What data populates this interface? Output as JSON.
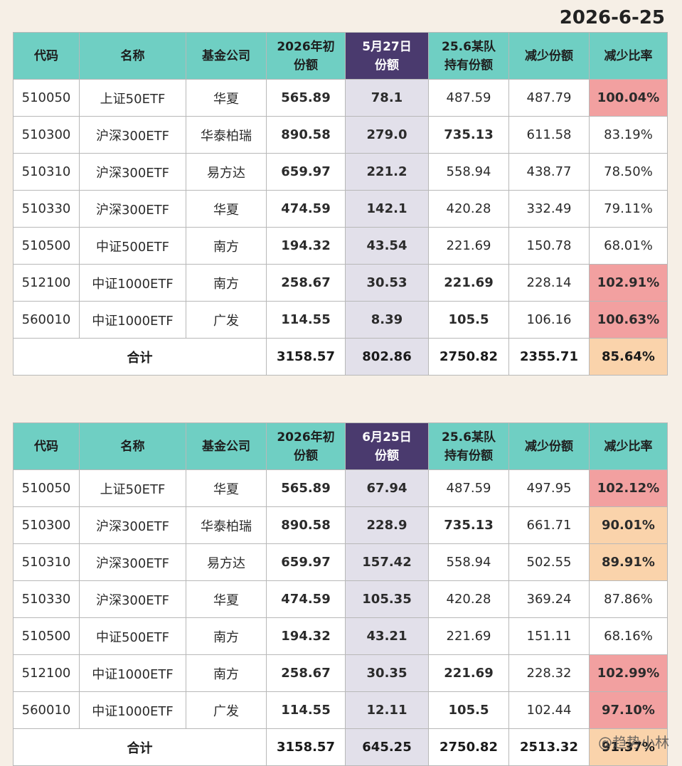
{
  "date": "2026-6-25",
  "watermark": "@趋势小林",
  "tables": [
    {
      "headers": {
        "code": "代码",
        "name": "名称",
        "company": "基金公司",
        "initial": [
          "2026年初",
          "份额"
        ],
        "current": [
          "5月27日",
          "份额"
        ],
        "held": [
          "25.6某队",
          "持有份额"
        ],
        "reduced": "减少份额",
        "ratio": "减少比率"
      },
      "rows": [
        {
          "code": "510050",
          "name": "上证50ETF",
          "company": "华夏",
          "initial": "565.89",
          "current": "78.1",
          "held": "487.59",
          "reduced": "487.79",
          "ratio": "100.04%",
          "ratio_style": "red",
          "held_bold": false
        },
        {
          "code": "510300",
          "name": "沪深300ETF",
          "company": "华泰柏瑞",
          "initial": "890.58",
          "current": "279.0",
          "held": "735.13",
          "reduced": "611.58",
          "ratio": "83.19%",
          "ratio_style": "",
          "held_bold": true
        },
        {
          "code": "510310",
          "name": "沪深300ETF",
          "company": "易方达",
          "initial": "659.97",
          "current": "221.2",
          "held": "558.94",
          "reduced": "438.77",
          "ratio": "78.50%",
          "ratio_style": "",
          "held_bold": false
        },
        {
          "code": "510330",
          "name": "沪深300ETF",
          "company": "华夏",
          "initial": "474.59",
          "current": "142.1",
          "held": "420.28",
          "reduced": "332.49",
          "ratio": "79.11%",
          "ratio_style": "",
          "held_bold": false
        },
        {
          "code": "510500",
          "name": "中证500ETF",
          "company": "南方",
          "initial": "194.32",
          "current": "43.54",
          "held": "221.69",
          "reduced": "150.78",
          "ratio": "68.01%",
          "ratio_style": "",
          "held_bold": false
        },
        {
          "code": "512100",
          "name": "中证1000ETF",
          "company": "南方",
          "initial": "258.67",
          "current": "30.53",
          "held": "221.69",
          "reduced": "228.14",
          "ratio": "102.91%",
          "ratio_style": "red",
          "held_bold": true
        },
        {
          "code": "560010",
          "name": "中证1000ETF",
          "company": "广发",
          "initial": "114.55",
          "current": "8.39",
          "held": "105.5",
          "reduced": "106.16",
          "ratio": "100.63%",
          "ratio_style": "red",
          "held_bold": true
        }
      ],
      "total": {
        "label": "合计",
        "initial": "3158.57",
        "current": "802.86",
        "held": "2750.82",
        "reduced": "2355.71",
        "ratio": "85.64%",
        "ratio_style": "peach"
      }
    },
    {
      "headers": {
        "code": "代码",
        "name": "名称",
        "company": "基金公司",
        "initial": [
          "2026年初",
          "份额"
        ],
        "current": [
          "6月25日",
          "份额"
        ],
        "held": [
          "25.6某队",
          "持有份额"
        ],
        "reduced": "减少份额",
        "ratio": "减少比率"
      },
      "rows": [
        {
          "code": "510050",
          "name": "上证50ETF",
          "company": "华夏",
          "initial": "565.89",
          "current": "67.94",
          "held": "487.59",
          "reduced": "497.95",
          "ratio": "102.12%",
          "ratio_style": "red",
          "held_bold": false
        },
        {
          "code": "510300",
          "name": "沪深300ETF",
          "company": "华泰柏瑞",
          "initial": "890.58",
          "current": "228.9",
          "held": "735.13",
          "reduced": "661.71",
          "ratio": "90.01%",
          "ratio_style": "peach",
          "held_bold": true
        },
        {
          "code": "510310",
          "name": "沪深300ETF",
          "company": "易方达",
          "initial": "659.97",
          "current": "157.42",
          "held": "558.94",
          "reduced": "502.55",
          "ratio": "89.91%",
          "ratio_style": "peach",
          "held_bold": false
        },
        {
          "code": "510330",
          "name": "沪深300ETF",
          "company": "华夏",
          "initial": "474.59",
          "current": "105.35",
          "held": "420.28",
          "reduced": "369.24",
          "ratio": "87.86%",
          "ratio_style": "",
          "held_bold": false
        },
        {
          "code": "510500",
          "name": "中证500ETF",
          "company": "南方",
          "initial": "194.32",
          "current": "43.21",
          "held": "221.69",
          "reduced": "151.11",
          "ratio": "68.16%",
          "ratio_style": "",
          "held_bold": false
        },
        {
          "code": "512100",
          "name": "中证1000ETF",
          "company": "南方",
          "initial": "258.67",
          "current": "30.35",
          "held": "221.69",
          "reduced": "228.32",
          "ratio": "102.99%",
          "ratio_style": "red",
          "held_bold": true
        },
        {
          "code": "560010",
          "name": "中证1000ETF",
          "company": "广发",
          "initial": "114.55",
          "current": "12.11",
          "held": "105.5",
          "reduced": "102.44",
          "ratio": "97.10%",
          "ratio_style": "red",
          "held_bold": true
        }
      ],
      "total": {
        "label": "合计",
        "initial": "3158.57",
        "current": "645.25",
        "held": "2750.82",
        "reduced": "2513.32",
        "ratio": "91.37%",
        "ratio_style": "peach"
      }
    }
  ]
}
